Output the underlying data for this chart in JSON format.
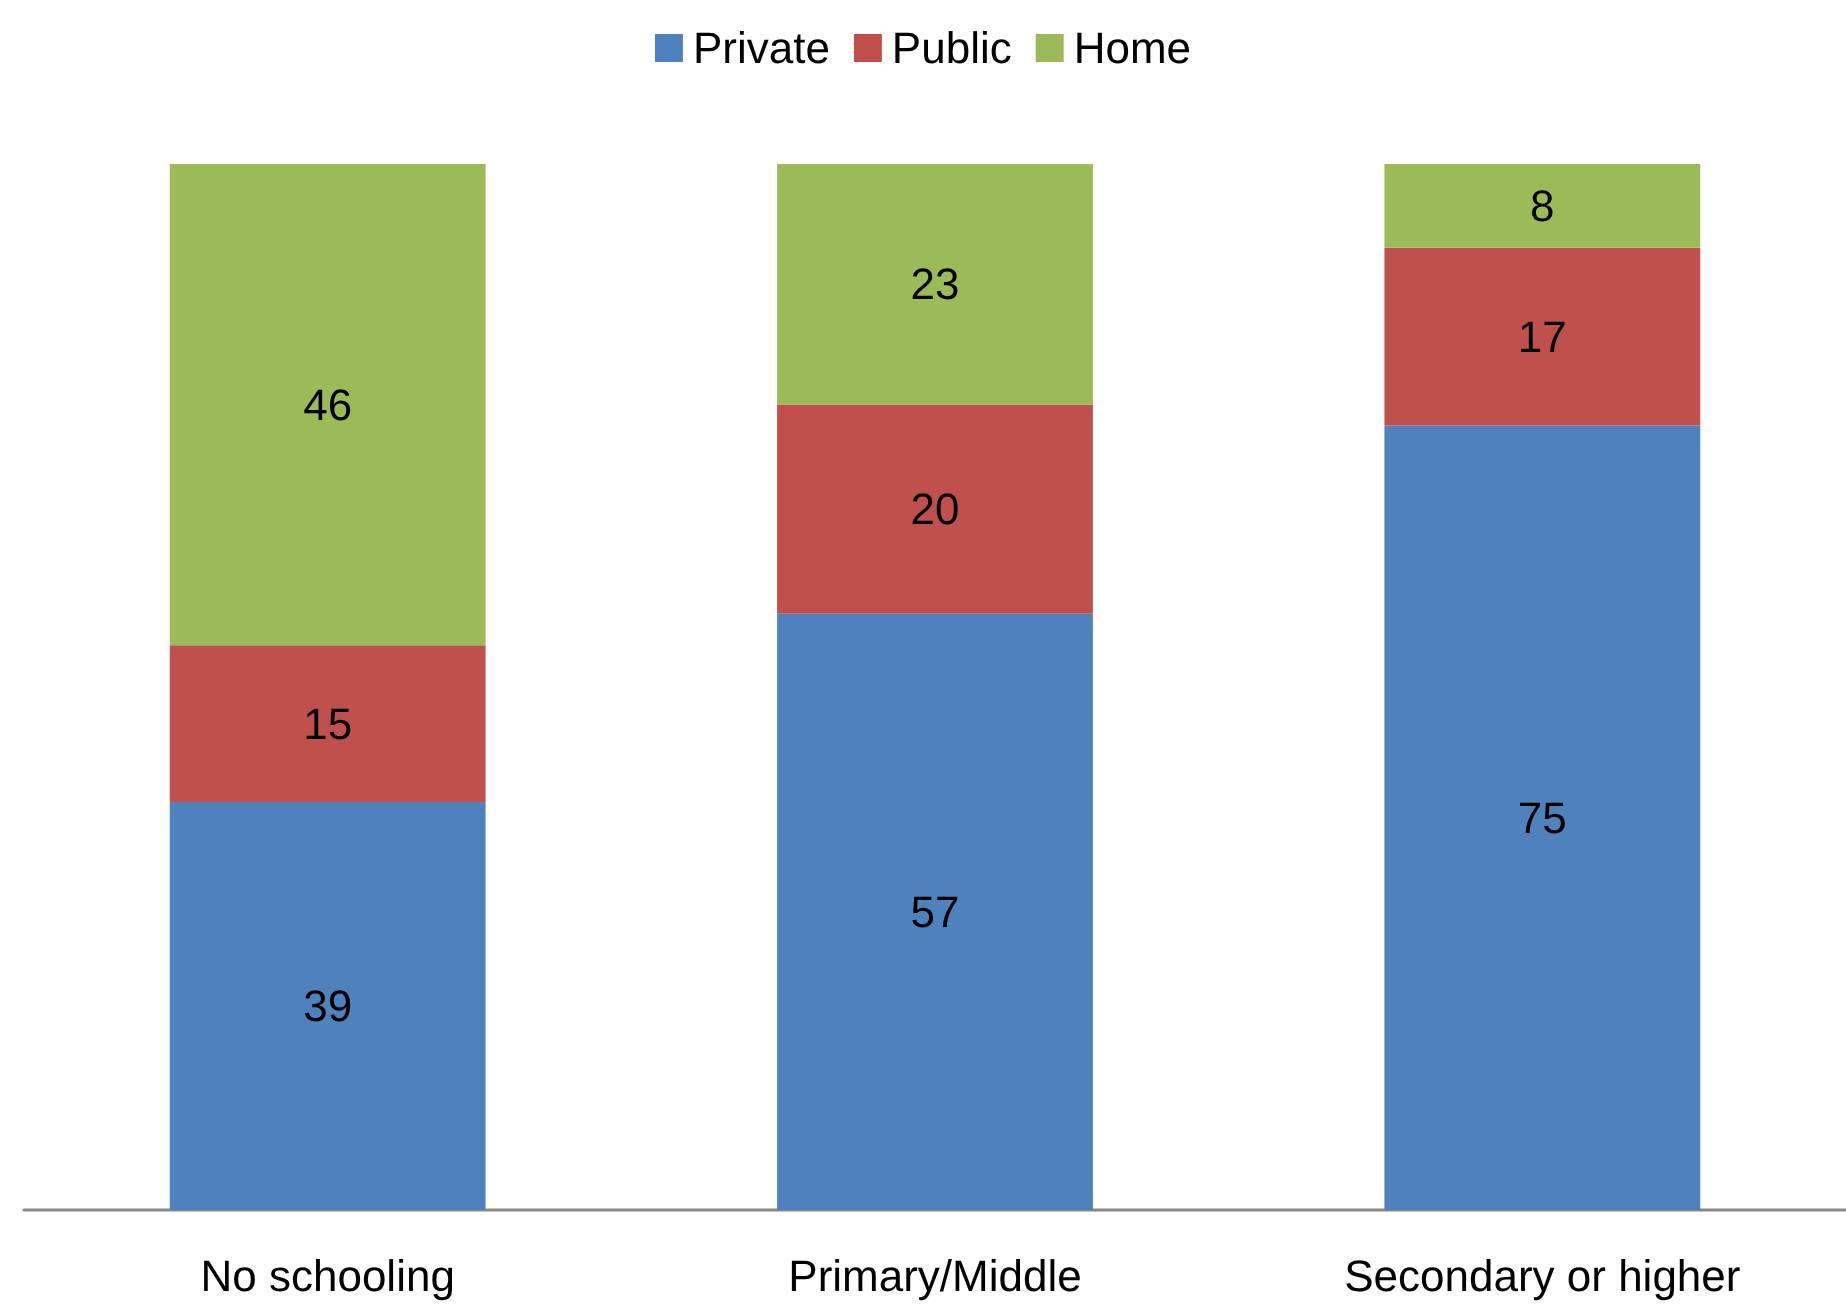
{
  "chart_data": {
    "type": "bar",
    "stacked": true,
    "data_labels": true,
    "legend": "top",
    "ylim": [
      0,
      100
    ],
    "tick_labels": "x",
    "categories": [
      "No schooling",
      "Primary/Middle",
      "Secondary or higher"
    ],
    "series": [
      {
        "name": "Private",
        "color": "#4f81bd",
        "values": [
          39,
          57,
          75
        ]
      },
      {
        "name": "Public",
        "color": "#c0504d",
        "values": [
          15,
          20,
          17
        ]
      },
      {
        "name": "Home",
        "color": "#9bbb59",
        "values": [
          46,
          23,
          8
        ]
      }
    ]
  }
}
